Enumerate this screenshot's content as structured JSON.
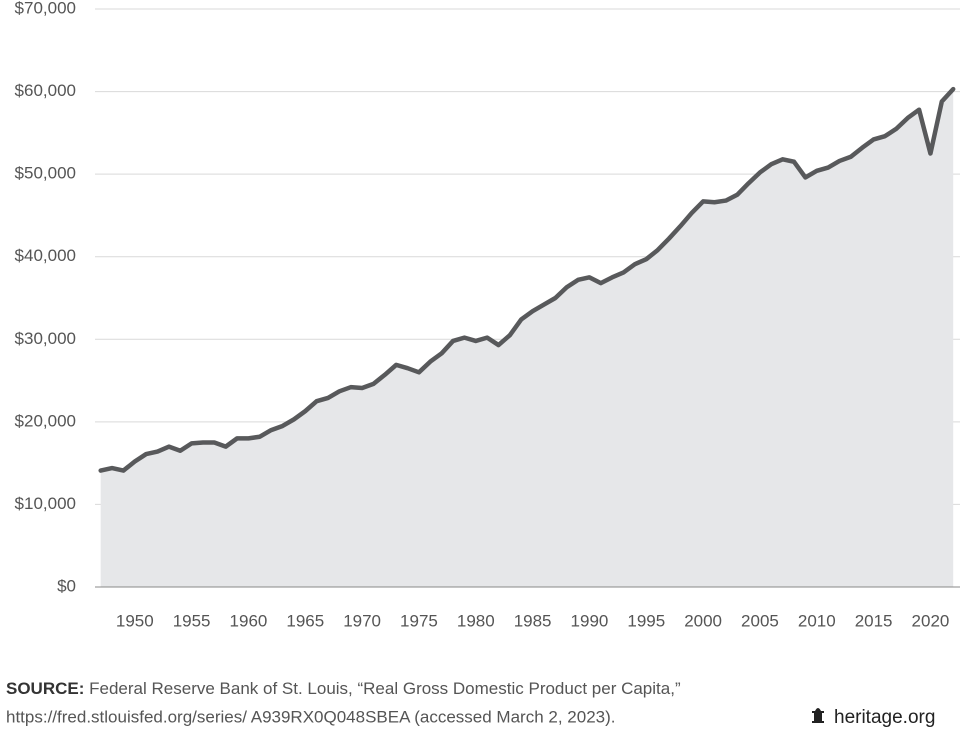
{
  "chart_data": {
    "type": "area",
    "x": [
      1947,
      1948,
      1949,
      1950,
      1951,
      1952,
      1953,
      1954,
      1955,
      1956,
      1957,
      1958,
      1959,
      1960,
      1961,
      1962,
      1963,
      1964,
      1965,
      1966,
      1967,
      1968,
      1969,
      1970,
      1971,
      1972,
      1973,
      1974,
      1975,
      1976,
      1977,
      1978,
      1979,
      1980,
      1981,
      1982,
      1983,
      1984,
      1985,
      1986,
      1987,
      1988,
      1989,
      1990,
      1991,
      1992,
      1993,
      1994,
      1995,
      1996,
      1997,
      1998,
      1999,
      2000,
      2001,
      2002,
      2003,
      2004,
      2005,
      2006,
      2007,
      2008,
      2009,
      2010,
      2011,
      2012,
      2013,
      2014,
      2015,
      2016,
      2017,
      2018,
      2019,
      2020,
      2021,
      2022
    ],
    "values": [
      14100,
      14400,
      14100,
      15200,
      16100,
      16400,
      17000,
      16500,
      17400,
      17500,
      17500,
      17000,
      18000,
      18000,
      18200,
      19000,
      19500,
      20300,
      21300,
      22500,
      22900,
      23700,
      24200,
      24100,
      24600,
      25700,
      26900,
      26500,
      26000,
      27300,
      28300,
      29800,
      30200,
      29800,
      30200,
      29300,
      30500,
      32400,
      33400,
      34200,
      35000,
      36300,
      37200,
      37500,
      36800,
      37500,
      38100,
      39100,
      39700,
      40800,
      42200,
      43700,
      45300,
      46700,
      46600,
      46800,
      47500,
      48900,
      50200,
      51200,
      51800,
      51500,
      49600,
      50400,
      50800,
      51600,
      52100,
      53200,
      54200,
      54600,
      55500,
      56800,
      57800,
      52500,
      58800,
      60300
    ],
    "color": "#58595b",
    "fill": "#e6e7e9",
    "xlim": [
      1946.5,
      2022.6
    ],
    "xticks": [
      1950,
      1955,
      1960,
      1965,
      1970,
      1975,
      1980,
      1985,
      1990,
      1995,
      2000,
      2005,
      2010,
      2015,
      2020
    ],
    "ylim": [
      0,
      70000
    ],
    "yticks": [
      {
        "value": 0,
        "label": "$0"
      },
      {
        "value": 10000,
        "label": "$10,000"
      },
      {
        "value": 20000,
        "label": "$20,000"
      },
      {
        "value": 30000,
        "label": "$30,000"
      },
      {
        "value": 40000,
        "label": "$40,000"
      },
      {
        "value": 50000,
        "label": "$50,000"
      },
      {
        "value": 60000,
        "label": "$60,000"
      },
      {
        "value": 70000,
        "label": "$70,000"
      }
    ],
    "grid": true,
    "source_label": "SOURCE:",
    "source_lines": [
      "Federal Reserve Bank of St. Louis, “Real Gross Domestic Product per Capita,”",
      "https://fred.stlouisfed.org/series/ A939RX0Q048SBEA (accessed March 2, 2023)."
    ],
    "brand": "heritage.org"
  }
}
